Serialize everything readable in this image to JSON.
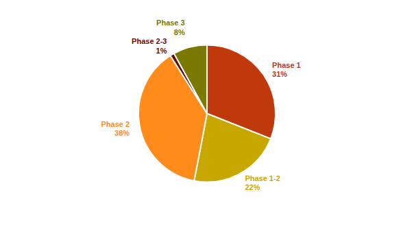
{
  "chart_data": {
    "type": "pie",
    "categories": [
      "Phase 1",
      "Phase 1-2",
      "Phase 2",
      "Phase 2-3",
      "Phase 3"
    ],
    "values": [
      31,
      22,
      38,
      1,
      8
    ],
    "value_labels": [
      "31%",
      "22%",
      "38%",
      "1%",
      "8%"
    ],
    "colors": [
      "#c0390a",
      "#c8a800",
      "#ff8c1a",
      "#6b0a0a",
      "#7a7a00"
    ],
    "data_labels": true
  }
}
